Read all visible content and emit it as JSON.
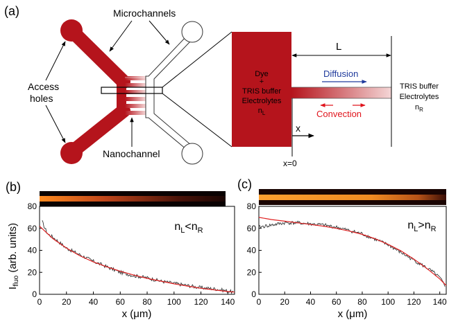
{
  "panel_a": {
    "label": "(a)",
    "chip_labels": {
      "microchannels": "Microchannels",
      "access_holes_line1": "Access",
      "access_holes_line2": "holes",
      "nanochannel": "Nanochannel"
    },
    "reservoir_left": {
      "line1": "Dye",
      "line2": "+",
      "line3": "TRIS buffer",
      "line4": "Electrolytes",
      "line5_main": "n",
      "line5_sub": "L"
    },
    "reservoir_right": {
      "line1": "TRIS buffer",
      "line2": "Electrolytes",
      "line3_main": "n",
      "line3_sub": "R"
    },
    "length_label": "L",
    "diffusion_label": "Diffusion",
    "convection_label": "Convection",
    "x_axis_label": "x",
    "origin_label": "x=0",
    "colors": {
      "chip_red": "#b5141c",
      "diffusion_blue": "#1f3a9c",
      "convection_red": "#e0141c"
    }
  },
  "panel_b": {
    "label": "(b)"
  },
  "panel_c": {
    "label": "(c)"
  },
  "chart_data": [
    {
      "panel": "(b)",
      "type": "line",
      "xlabel": "x (μm)",
      "ylabel_main": "I",
      "ylabel_sub": "fluo",
      "ylabel_rest": " (arb. units)",
      "xlim": [
        0,
        145
      ],
      "ylim": [
        0,
        80
      ],
      "xticks": [
        0,
        20,
        40,
        60,
        80,
        100,
        120,
        140
      ],
      "yticks": [
        0,
        20,
        40,
        60,
        80
      ],
      "annotation": {
        "n1": "n",
        "s1": "L",
        "op": "<",
        "n2": "n",
        "s2": "R"
      },
      "series": [
        {
          "role": "measured",
          "color": "#333333",
          "x": [
            2,
            4,
            6,
            10,
            15,
            20,
            30,
            40,
            50,
            60,
            70,
            80,
            90,
            100,
            110,
            120,
            130,
            140,
            144
          ],
          "y": [
            66,
            60,
            55,
            52,
            47,
            42,
            36,
            30,
            25,
            20,
            17,
            15,
            12,
            10,
            8,
            6,
            5,
            3,
            2
          ]
        },
        {
          "role": "fit",
          "color": "#e02020",
          "x": [
            0,
            10,
            20,
            30,
            40,
            50,
            60,
            70,
            80,
            90,
            100,
            110,
            120,
            130,
            140,
            145
          ],
          "y": [
            62,
            50.5,
            42,
            35,
            29.5,
            25,
            21,
            17.5,
            14.5,
            12,
            9.5,
            7.5,
            5.5,
            4,
            2.5,
            2
          ]
        }
      ]
    },
    {
      "panel": "(c)",
      "type": "line",
      "xlabel": "x (μm)",
      "xlim": [
        0,
        145
      ],
      "ylim": [
        0,
        80
      ],
      "xticks": [
        0,
        20,
        40,
        60,
        80,
        100,
        120,
        140
      ],
      "yticks": [
        0,
        20,
        40,
        60,
        80
      ],
      "annotation": {
        "n1": "n",
        "s1": "L",
        "op": ">",
        "n2": "n",
        "s2": "R"
      },
      "series": [
        {
          "role": "measured",
          "color": "#333333",
          "x": [
            0,
            5,
            10,
            20,
            30,
            40,
            50,
            60,
            70,
            80,
            90,
            100,
            110,
            120,
            130,
            135,
            140,
            144
          ],
          "y": [
            61,
            62,
            63,
            65,
            65,
            64,
            63,
            61,
            58,
            55,
            50,
            45,
            38,
            31,
            24,
            20,
            15,
            8
          ]
        },
        {
          "role": "fit",
          "color": "#e02020",
          "x": [
            0,
            10,
            20,
            30,
            40,
            50,
            60,
            70,
            80,
            90,
            100,
            110,
            120,
            130,
            140,
            145
          ],
          "y": [
            70,
            68,
            66.5,
            65,
            63.5,
            62,
            60,
            57.5,
            54.5,
            50.5,
            45.5,
            39.5,
            32,
            23.5,
            14,
            8
          ]
        }
      ]
    }
  ]
}
